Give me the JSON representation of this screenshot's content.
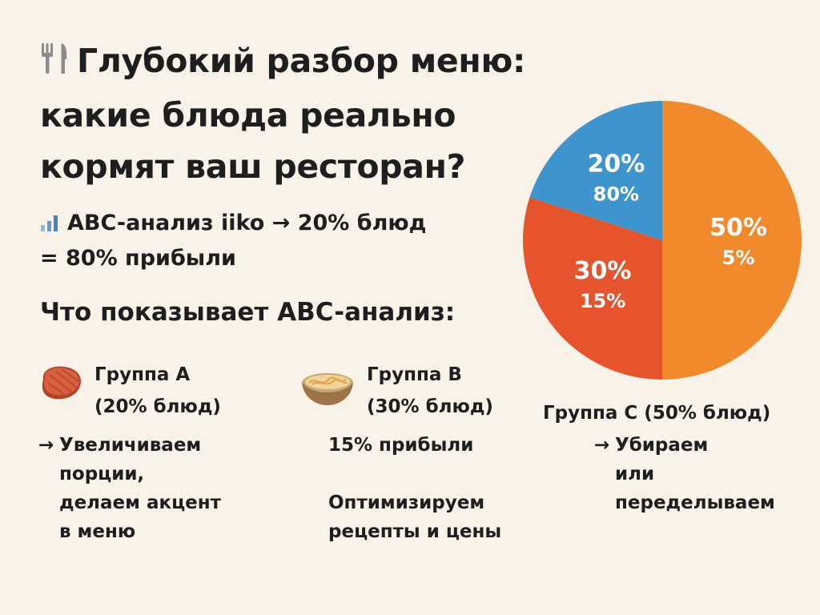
{
  "title_lines": [
    "Глубокий разбор меню:",
    "какие  блюда реально",
    "кормят ваш ресторан?"
  ],
  "icons": {
    "title": "fork-knife-icon",
    "subtitle": "bar-chart-icon",
    "group_a": "steak-icon",
    "group_b": "noodle-bowl-icon"
  },
  "subtitle_lines": [
    "ABC-анализ iiko → 20% блюд",
    "= 80% прибыли"
  ],
  "section_heading": "Что показывает ABC-анализ:",
  "group_a": {
    "title": "Группа А",
    "share": "(20% блюд)",
    "arrow": "→",
    "action_lines": [
      "Увеличиваем",
      "порции,",
      "делаем акцент",
      "в меню"
    ]
  },
  "group_b": {
    "title": "Группа B",
    "share": "(30% блюд)",
    "profit": "15% прибыли",
    "action_lines": [
      "Оптимизируем",
      "рецепты и цены"
    ]
  },
  "group_c": {
    "title": "Группа C (50% блюд)",
    "arrow": "→",
    "action_lines": [
      "Убираем",
      "или",
      "переделываем"
    ]
  },
  "chart_data": {
    "type": "pie",
    "slices": [
      {
        "label_top": "50%",
        "label_bottom": "5%",
        "dishes_share": 50,
        "profit_share": 5,
        "color": "#F08A2C"
      },
      {
        "label_top": "30%",
        "label_bottom": "15%",
        "dishes_share": 30,
        "profit_share": 15,
        "color": "#E5542D"
      },
      {
        "label_top": "20%",
        "label_bottom": "80%",
        "dishes_share": 20,
        "profit_share": 80,
        "color": "#3E94CC"
      }
    ],
    "start_angle_deg": 0,
    "direction": "clockwise"
  },
  "colors": {
    "background": "#F8F2E9",
    "text": "#1E1E1E",
    "slice_label": "#FFFFFF"
  }
}
